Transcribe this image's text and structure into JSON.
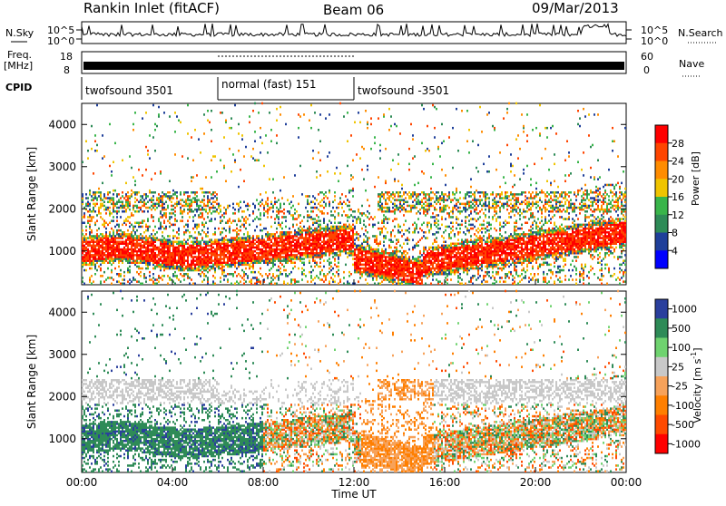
{
  "header": {
    "station": "Rankin Inlet (fitACF)",
    "beam": "Beam 06",
    "date": "09/Mar/2013"
  },
  "noise_panel": {
    "left_label": "N.Sky",
    "right_label": "N.Search",
    "tick_top": "10^5",
    "tick_bottom": "10^0"
  },
  "freq_panel": {
    "left_label_1": "Freq.",
    "left_label_2": "[MHz]",
    "left_tick_top": "18",
    "left_tick_bottom": "8",
    "right_label": "Nave",
    "right_tick_top": "60",
    "right_tick_bottom": "0"
  },
  "cpid": {
    "label": "CPID",
    "modes": [
      {
        "name": "twofsound 3501",
        "start_hour": 0,
        "end_hour": 6
      },
      {
        "name": "normal (fast) 151",
        "start_hour": 6,
        "end_hour": 12
      },
      {
        "name": "twofsound -3501",
        "start_hour": 12,
        "end_hour": 24
      }
    ]
  },
  "colors": {
    "power": [
      "#0000ff",
      "#1f3f9a",
      "#2e8b57",
      "#39b54a",
      "#f0c400",
      "#ff8c00",
      "#ff4500",
      "#ff0000"
    ],
    "velocity": [
      "#2a3f9d",
      "#2e8b57",
      "#6fd36f",
      "#c8c8c8",
      "#f7a25a",
      "#ff7f00",
      "#ff4a00",
      "#ff0000"
    ]
  },
  "chart_data": [
    {
      "type": "heatmap",
      "name": "power",
      "xlabel": "",
      "ylabel": "Slant Range [km]",
      "x_tick_labels": [
        "00:00",
        "04:00",
        "08:00",
        "12:00",
        "16:00",
        "20:00",
        "00:00"
      ],
      "y_tick_labels": [
        "1000",
        "2000",
        "3000",
        "4000"
      ],
      "xlim": [
        0,
        24
      ],
      "ylim": [
        200,
        4500
      ],
      "colorbar": {
        "label": "Power [dB]",
        "tick_labels": [
          "4",
          "8",
          "12",
          "16",
          "20",
          "24",
          "28"
        ],
        "range": [
          0,
          32
        ]
      }
    },
    {
      "type": "heatmap",
      "name": "velocity",
      "xlabel": "Time UT",
      "ylabel": "Slant Range [km]",
      "x_tick_labels": [
        "00:00",
        "04:00",
        "08:00",
        "12:00",
        "16:00",
        "20:00",
        "00:00"
      ],
      "y_tick_labels": [
        "1000",
        "2000",
        "3000",
        "4000"
      ],
      "xlim": [
        0,
        24
      ],
      "ylim": [
        200,
        4500
      ],
      "colorbar": {
        "label": "Velocity [m s",
        "label_sup": "-1",
        "label_end": "]",
        "tick_labels": [
          "1000",
          "500",
          "100",
          "25",
          "-25",
          "-100",
          "-500",
          "-1000"
        ]
      }
    }
  ]
}
